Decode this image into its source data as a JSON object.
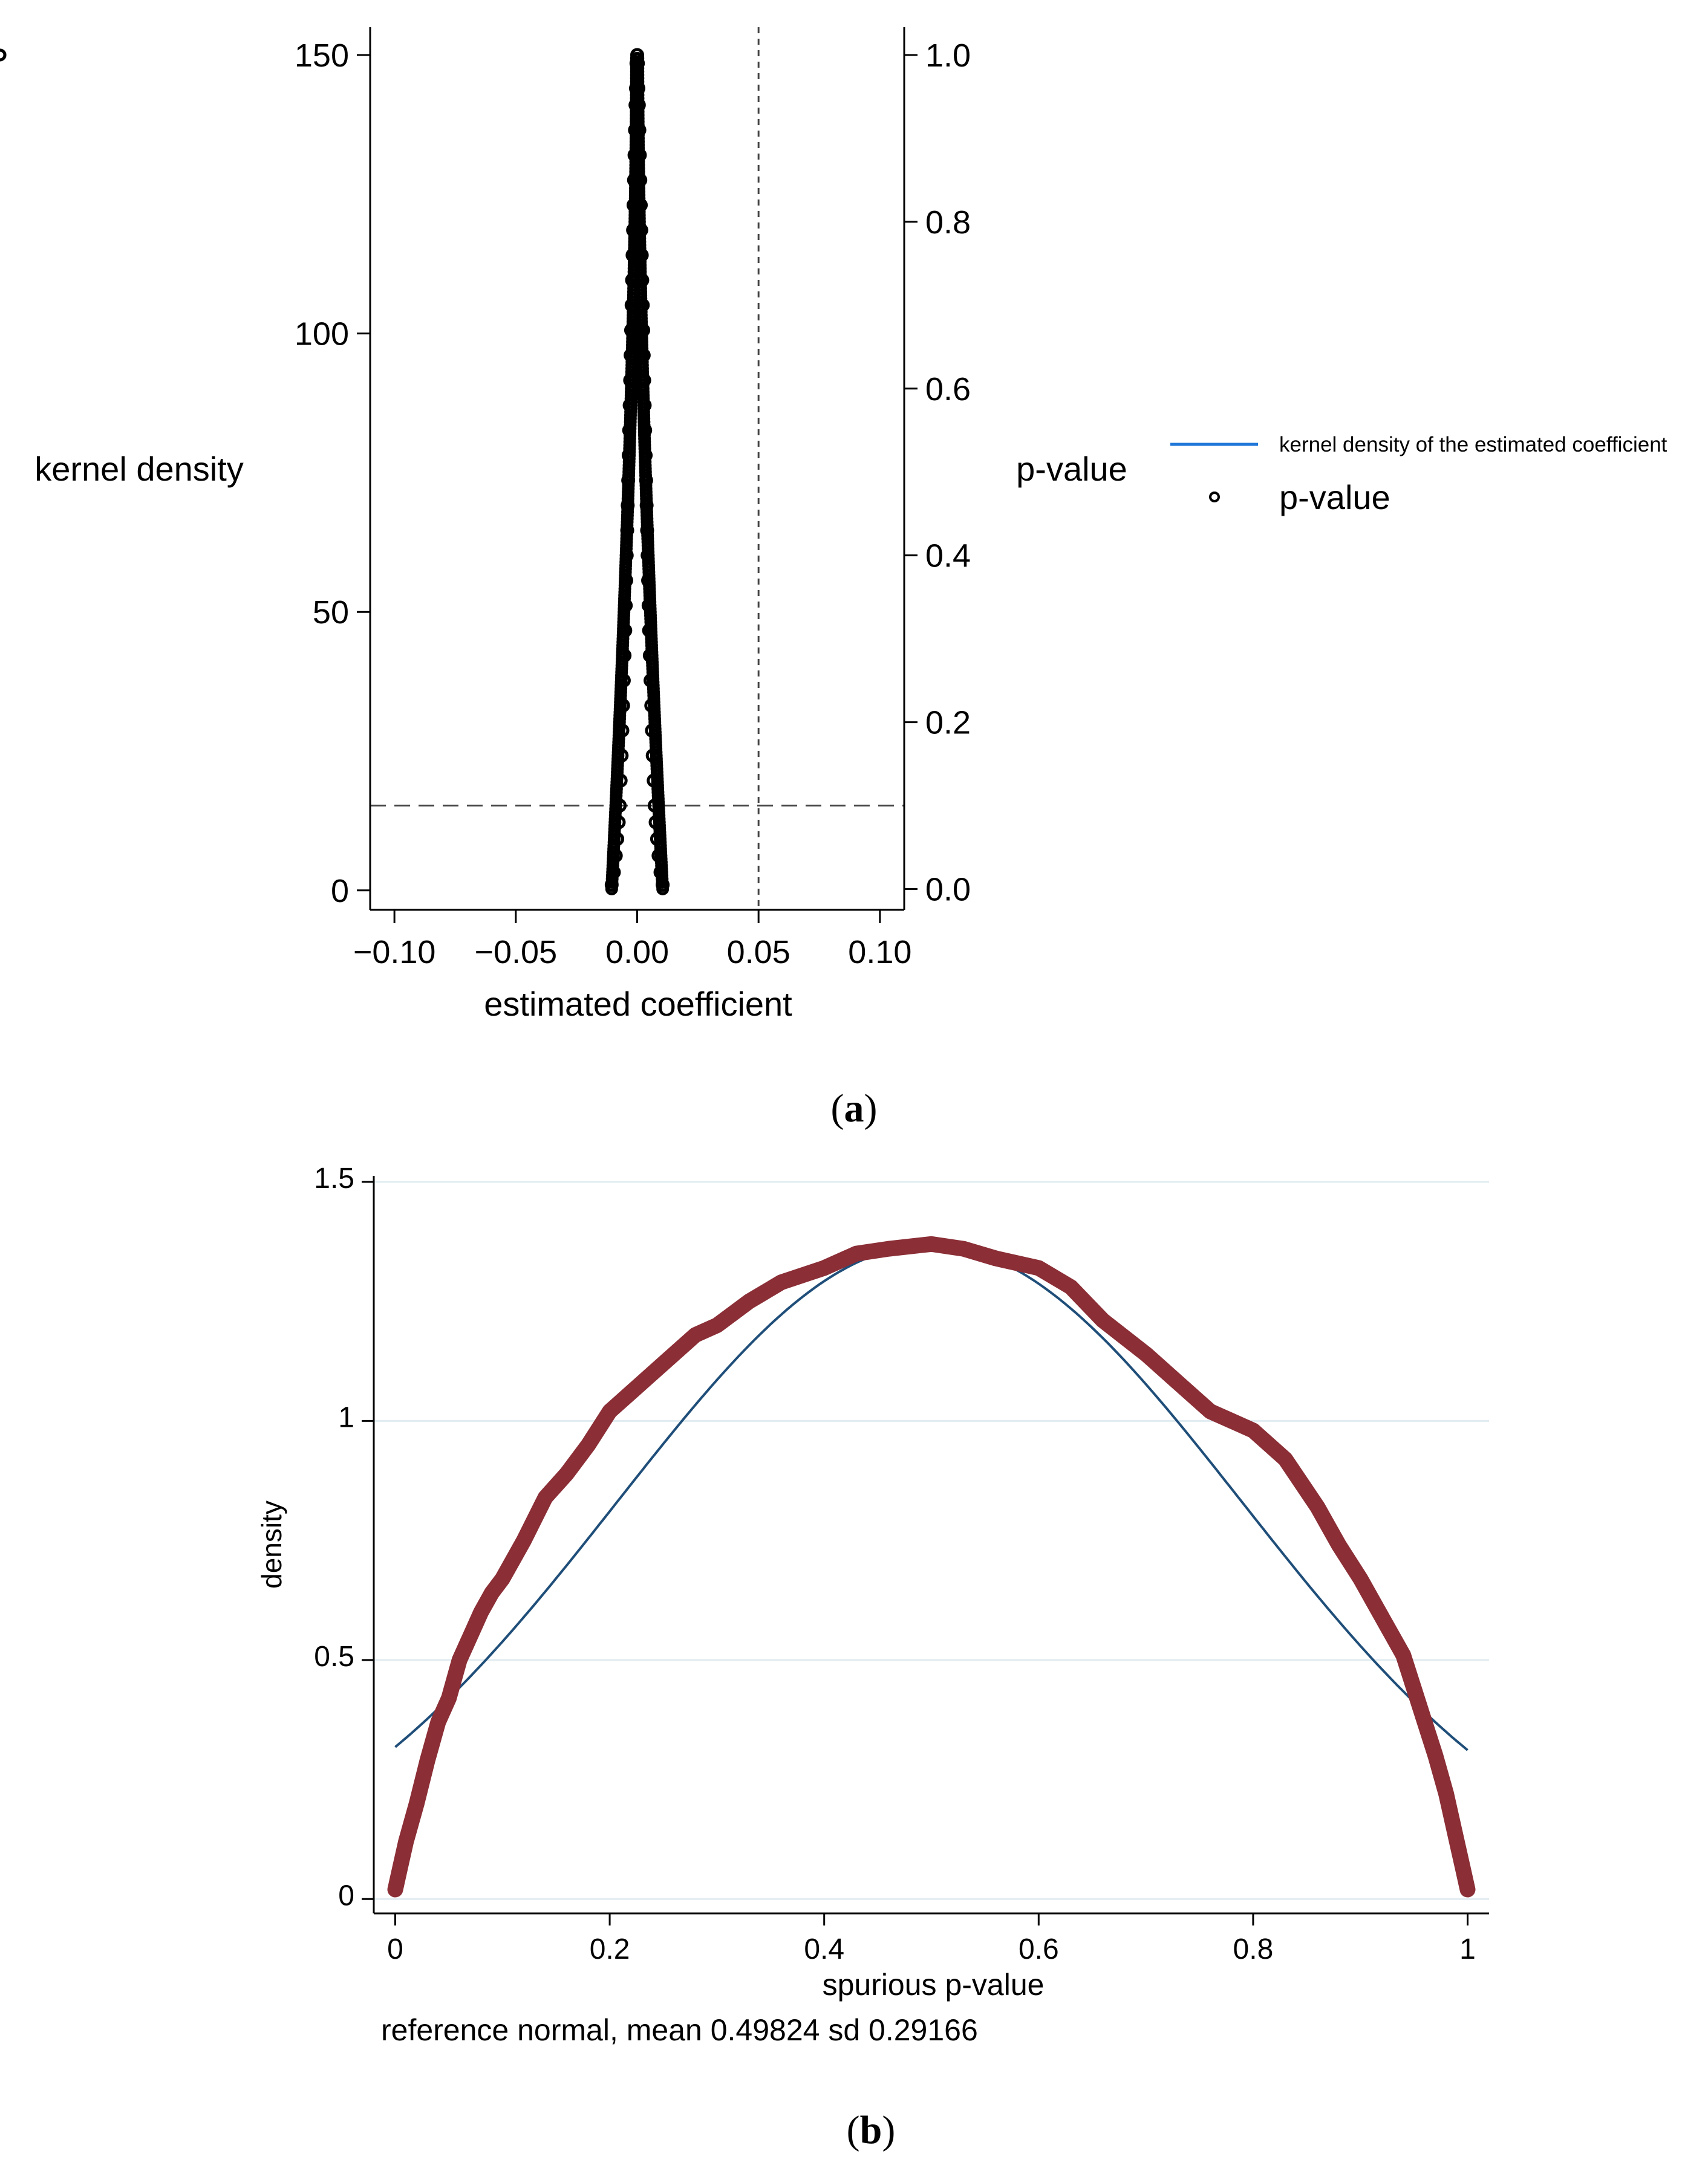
{
  "chart_data": [
    {
      "id": "a",
      "panel_label": "(a)",
      "panel_letter": "a",
      "type": "scatter",
      "xlabel": "estimated coefficient",
      "ylabel_left": "kernel density",
      "ylabel_right": "p-value",
      "xlim": [
        -0.11,
        0.11
      ],
      "ylim_left": [
        -3.5,
        155
      ],
      "ylim_right": [
        -0.025,
        1.0333
      ],
      "x_ticks": [
        -0.1,
        -0.05,
        0,
        0.05,
        0.1
      ],
      "x_tick_labels": [
        "−0.10",
        "−0.05",
        "0.00",
        "0.05",
        "0.10"
      ],
      "y_left_ticks": [
        0,
        50,
        100,
        150
      ],
      "y_left_tick_labels": [
        "0",
        "50",
        "100",
        "150"
      ],
      "y_right_ticks": [
        0,
        0.2,
        0.4,
        0.6,
        0.8,
        1.0
      ],
      "y_right_tick_labels": [
        "0.0",
        "0.2",
        "0.4",
        "0.6",
        "0.8",
        "1.0"
      ],
      "reference_lines": {
        "vertical_x": 0.05,
        "horizontal_p": 0.1
      },
      "legend": {
        "placement": "right",
        "entries": [
          {
            "label": "kernel density of the estimated coefficient",
            "marker": "line",
            "color": "#1f77d8"
          },
          {
            "label": "p-value",
            "marker": "hollow-circle",
            "color": "#000000"
          }
        ]
      },
      "series": [
        {
          "name": "p-value",
          "type": "scatter",
          "marker": "hollow-circle",
          "color": "#000000",
          "x": [
            0.0,
            -0.0003,
            0.0003,
            -0.0005,
            0.0005,
            -0.0007,
            0.0007,
            -0.0009,
            0.0009,
            -0.0011,
            0.0011,
            -0.0013,
            0.0013,
            -0.0015,
            0.0015,
            -0.0017,
            0.0017,
            -0.0019,
            0.0019,
            -0.0021,
            0.0021,
            -0.0023,
            0.0023,
            -0.0025,
            0.0025,
            -0.0027,
            0.0027,
            -0.0029,
            0.0029,
            -0.0031,
            0.0031,
            -0.0033,
            0.0033,
            -0.0035,
            0.0035,
            -0.0037,
            0.0037,
            -0.0039,
            0.0039,
            -0.0041,
            0.0041,
            -0.0043,
            0.0043,
            -0.0045,
            0.0045,
            -0.0047,
            0.0047,
            -0.0049,
            0.0049,
            -0.0052,
            0.0052,
            -0.0055,
            0.0055,
            -0.0058,
            0.0058,
            -0.0061,
            0.0061,
            -0.0064,
            0.0064,
            -0.0068,
            0.0068,
            -0.0072,
            0.0072,
            -0.0076,
            0.0076,
            -0.0082,
            0.0082,
            -0.0088,
            0.0088,
            -0.0096,
            0.0096,
            -0.0105,
            0.0105
          ],
          "y": [
            1.0,
            0.99,
            0.99,
            0.96,
            0.96,
            0.94,
            0.94,
            0.91,
            0.91,
            0.88,
            0.88,
            0.85,
            0.85,
            0.82,
            0.82,
            0.79,
            0.79,
            0.76,
            0.76,
            0.73,
            0.73,
            0.7,
            0.7,
            0.67,
            0.67,
            0.64,
            0.64,
            0.61,
            0.61,
            0.58,
            0.58,
            0.55,
            0.55,
            0.52,
            0.52,
            0.49,
            0.49,
            0.46,
            0.46,
            0.43,
            0.43,
            0.4,
            0.4,
            0.37,
            0.37,
            0.34,
            0.34,
            0.31,
            0.31,
            0.28,
            0.28,
            0.25,
            0.25,
            0.22,
            0.22,
            0.19,
            0.19,
            0.16,
            0.16,
            0.13,
            0.13,
            0.1,
            0.1,
            0.08,
            0.08,
            0.06,
            0.06,
            0.04,
            0.04,
            0.02,
            0.02,
            0.005,
            0.005
          ]
        }
      ]
    },
    {
      "id": "b",
      "panel_label": "(b)",
      "panel_letter": "b",
      "type": "line",
      "xlabel": "spurious p-value",
      "ylabel": "density",
      "note": "reference normal, mean 0.49824 sd 0.29166",
      "xlim": [
        -0.02,
        1.02
      ],
      "ylim": [
        -0.03,
        1.5
      ],
      "x_ticks": [
        0,
        0.2,
        0.4,
        0.6,
        0.8,
        1
      ],
      "x_tick_labels": [
        "0",
        "0.2",
        "0.4",
        "0.6",
        "0.8",
        "1"
      ],
      "y_ticks": [
        0,
        0.5,
        1,
        1.5
      ],
      "y_tick_labels": [
        "0",
        "0.5",
        "1",
        "1.5"
      ],
      "grid": true,
      "reference_normal": {
        "mean": 0.49824,
        "sd": 0.29166,
        "color": "#1f4e79"
      },
      "series": [
        {
          "type": "kernel-density",
          "color": "#8b2e36",
          "x": [
            0.0,
            0.005,
            0.01,
            0.02,
            0.03,
            0.04,
            0.05,
            0.06,
            0.07,
            0.08,
            0.09,
            0.1,
            0.12,
            0.14,
            0.16,
            0.18,
            0.2,
            0.22,
            0.25,
            0.28,
            0.3,
            0.33,
            0.36,
            0.4,
            0.43,
            0.46,
            0.5,
            0.53,
            0.56,
            0.6,
            0.63,
            0.66,
            0.7,
            0.73,
            0.76,
            0.8,
            0.83,
            0.86,
            0.88,
            0.9,
            0.92,
            0.94,
            0.95,
            0.96,
            0.97,
            0.98,
            0.99,
            0.995,
            1.0
          ],
          "y": [
            0.02,
            0.07,
            0.12,
            0.2,
            0.29,
            0.37,
            0.42,
            0.5,
            0.55,
            0.6,
            0.64,
            0.67,
            0.75,
            0.84,
            0.89,
            0.95,
            1.02,
            1.06,
            1.12,
            1.18,
            1.2,
            1.25,
            1.29,
            1.32,
            1.35,
            1.36,
            1.37,
            1.36,
            1.34,
            1.32,
            1.28,
            1.21,
            1.14,
            1.08,
            1.02,
            0.98,
            0.92,
            0.82,
            0.74,
            0.67,
            0.59,
            0.51,
            0.44,
            0.37,
            0.3,
            0.22,
            0.12,
            0.07,
            0.02
          ]
        }
      ]
    }
  ]
}
